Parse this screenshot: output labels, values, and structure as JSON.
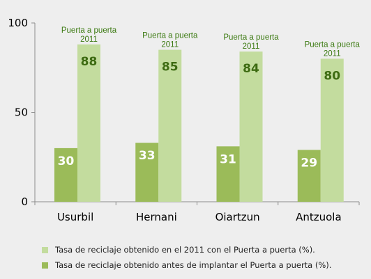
{
  "chart_data": {
    "type": "bar",
    "categories": [
      "Usurbil",
      "Hernani",
      "Oiartzun",
      "Antzuola"
    ],
    "series": [
      {
        "name": "Tasa de reciclaje obtenido antes de implantar el Puerta a puerta (%).",
        "values": [
          30,
          33,
          31,
          29
        ],
        "color": "#9bbb59"
      },
      {
        "name": "Tasa de reciclaje obtenido en el 2011 con el Puerta a puerta (%).",
        "values": [
          88,
          85,
          84,
          80
        ],
        "color": "#c3dc9e"
      }
    ],
    "annotations": [
      {
        "category": "Usurbil",
        "line1": "Puerta a puerta",
        "line2": "2011"
      },
      {
        "category": "Hernani",
        "line1": "Puerta a puerta",
        "line2": "2011"
      },
      {
        "category": "Oiartzun",
        "line1": "Puerta a puerta",
        "line2": "2011"
      },
      {
        "category": "Antzuola",
        "line1": "Puerta a puerta",
        "line2": "2011"
      }
    ],
    "yticks": [
      "0",
      "50",
      "100"
    ],
    "ylim": [
      0,
      100
    ],
    "grid": false,
    "legend_position": "bottom",
    "colors": {
      "label_dark": "#3d6b12",
      "annotation_text": "#3c7a12",
      "axis": "#8c8c8c",
      "background": "#eeeeee"
    }
  }
}
